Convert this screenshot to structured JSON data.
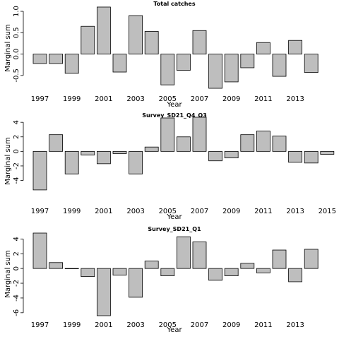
{
  "chart_data": [
    {
      "type": "bar",
      "title": "Total catches",
      "xlabel": "Year",
      "ylabel": "Marginal sum",
      "categories": [
        "1997",
        "1998",
        "1999",
        "2000",
        "2001",
        "2002",
        "2003",
        "2004",
        "2005",
        "2006",
        "2007",
        "2008",
        "2009",
        "2010",
        "2011",
        "2012",
        "2013",
        "2014"
      ],
      "x_tick_labels": [
        "1997",
        "1999",
        "2001",
        "2003",
        "2005",
        "2007",
        "2009",
        "2011",
        "2013"
      ],
      "yticks": [
        -0.5,
        0.0,
        0.5,
        1.0
      ],
      "ytick_labels": [
        "-0.5",
        "0.0",
        "0.5",
        "1.0"
      ],
      "ylim": [
        -0.75,
        1.05
      ],
      "values": [
        -0.22,
        -0.22,
        -0.45,
        0.65,
        1.1,
        -0.42,
        0.9,
        0.53,
        -0.72,
        -0.38,
        0.55,
        -0.8,
        -0.65,
        -0.32,
        0.27,
        -0.52,
        0.32,
        -0.43
      ]
    },
    {
      "type": "bar",
      "title": "Survey_SD21_Q4_Q3",
      "xlabel": "Year",
      "ylabel": "Marginal sum",
      "categories": [
        "1997",
        "1998",
        "1999",
        "2000",
        "2001",
        "2002",
        "2003",
        "2004",
        "2005",
        "2006",
        "2007",
        "2008",
        "2009",
        "2010",
        "2011",
        "2012",
        "2013",
        "2014",
        "2015"
      ],
      "x_tick_labels": [
        "1997",
        "1999",
        "2001",
        "2003",
        "2005",
        "2007",
        "2009",
        "2011",
        "2013",
        "2015"
      ],
      "yticks": [
        -4,
        -2,
        0,
        2,
        4
      ],
      "ytick_labels": [
        "-4",
        "-2",
        "0",
        "2",
        "4"
      ],
      "ylim": [
        -5.6,
        4.6
      ],
      "values": [
        -5.3,
        2.3,
        -3.1,
        -0.5,
        -1.7,
        -0.3,
        -3.1,
        0.6,
        4.6,
        2.0,
        4.7,
        -1.3,
        -0.9,
        2.3,
        2.8,
        2.1,
        -1.5,
        -1.6,
        -0.4
      ]
    },
    {
      "type": "bar",
      "title": "Survey_SD21_Q1",
      "xlabel": "Year",
      "ylabel": "Marginal sum",
      "categories": [
        "1997",
        "1998",
        "1999",
        "2000",
        "2001",
        "2002",
        "2003",
        "2004",
        "2005",
        "2006",
        "2007",
        "2008",
        "2009",
        "2010",
        "2011",
        "2012",
        "2013",
        "2014"
      ],
      "x_tick_labels": [
        "1997",
        "1999",
        "2001",
        "2003",
        "2005",
        "2007",
        "2009",
        "2011",
        "2013"
      ],
      "yticks": [
        -6,
        -4,
        -2,
        0,
        2,
        4
      ],
      "ytick_labels": [
        "-6",
        "-4",
        "-2",
        "0",
        "2",
        "4"
      ],
      "ylim": [
        -6.4,
        4.8
      ],
      "values": [
        4.8,
        0.8,
        0.0,
        -1.1,
        -6.4,
        -0.9,
        -3.9,
        1.0,
        -1.0,
        4.3,
        3.6,
        -1.6,
        -1.0,
        0.7,
        -0.6,
        2.5,
        -1.8,
        2.6
      ]
    }
  ]
}
